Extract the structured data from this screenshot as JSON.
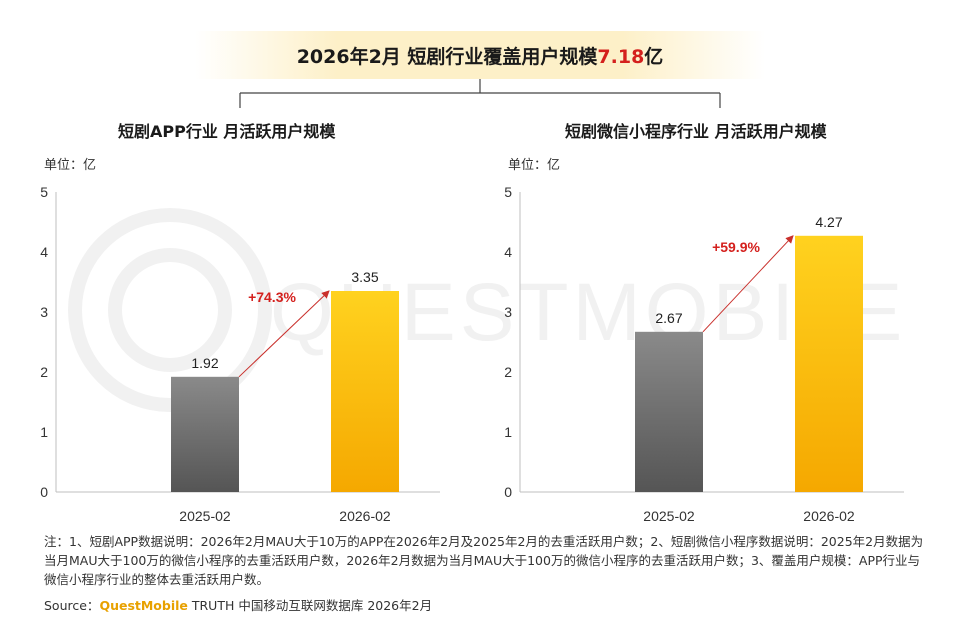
{
  "header": {
    "title_prefix": "2026年2月 短剧行业覆盖用户规模",
    "title_value": "7.18",
    "title_suffix": "亿"
  },
  "watermark_text": "QUESTMOBILE",
  "colors": {
    "bar_prev_top": "#8a8a8a",
    "bar_prev_bottom": "#555555",
    "bar_curr_top": "#ffd21f",
    "bar_curr_bottom": "#f5a800",
    "growth_label": "#d4201d",
    "arrow": "#c9302c"
  },
  "chart_data": [
    {
      "type": "bar",
      "title": "短剧APP行业 月活跃用户规模",
      "unit_label": "单位：亿",
      "categories": [
        "2025-02",
        "2026-02"
      ],
      "values": [
        1.92,
        3.35
      ],
      "growth": "+74.3%",
      "ylim": [
        0,
        5
      ],
      "yticks": [
        0,
        1,
        2,
        3,
        4,
        5
      ]
    },
    {
      "type": "bar",
      "title": "短剧微信小程序行业 月活跃用户规模",
      "unit_label": "单位：亿",
      "categories": [
        "2025-02",
        "2026-02"
      ],
      "values": [
        2.67,
        4.27
      ],
      "growth": "+59.9%",
      "ylim": [
        0,
        5
      ],
      "yticks": [
        0,
        1,
        2,
        3,
        4,
        5
      ]
    }
  ],
  "footer": {
    "note": "注：1、短剧APP数据说明：2026年2月MAU大于10万的APP在2026年2月及2025年2月的去重活跃用户数；2、短剧微信小程序数据说明：2025年2月数据为当月MAU大于100万的微信小程序的去重活跃用户数，2026年2月数据为当月MAU大于100万的微信小程序的去重活跃用户数；3、覆盖用户规模：APP行业与微信小程序行业的整体去重活跃用户数。",
    "source_label": "Source：",
    "source_brand": "QuestMobile",
    "source_rest": " TRUTH 中国移动互联网数据库 2026年2月"
  }
}
